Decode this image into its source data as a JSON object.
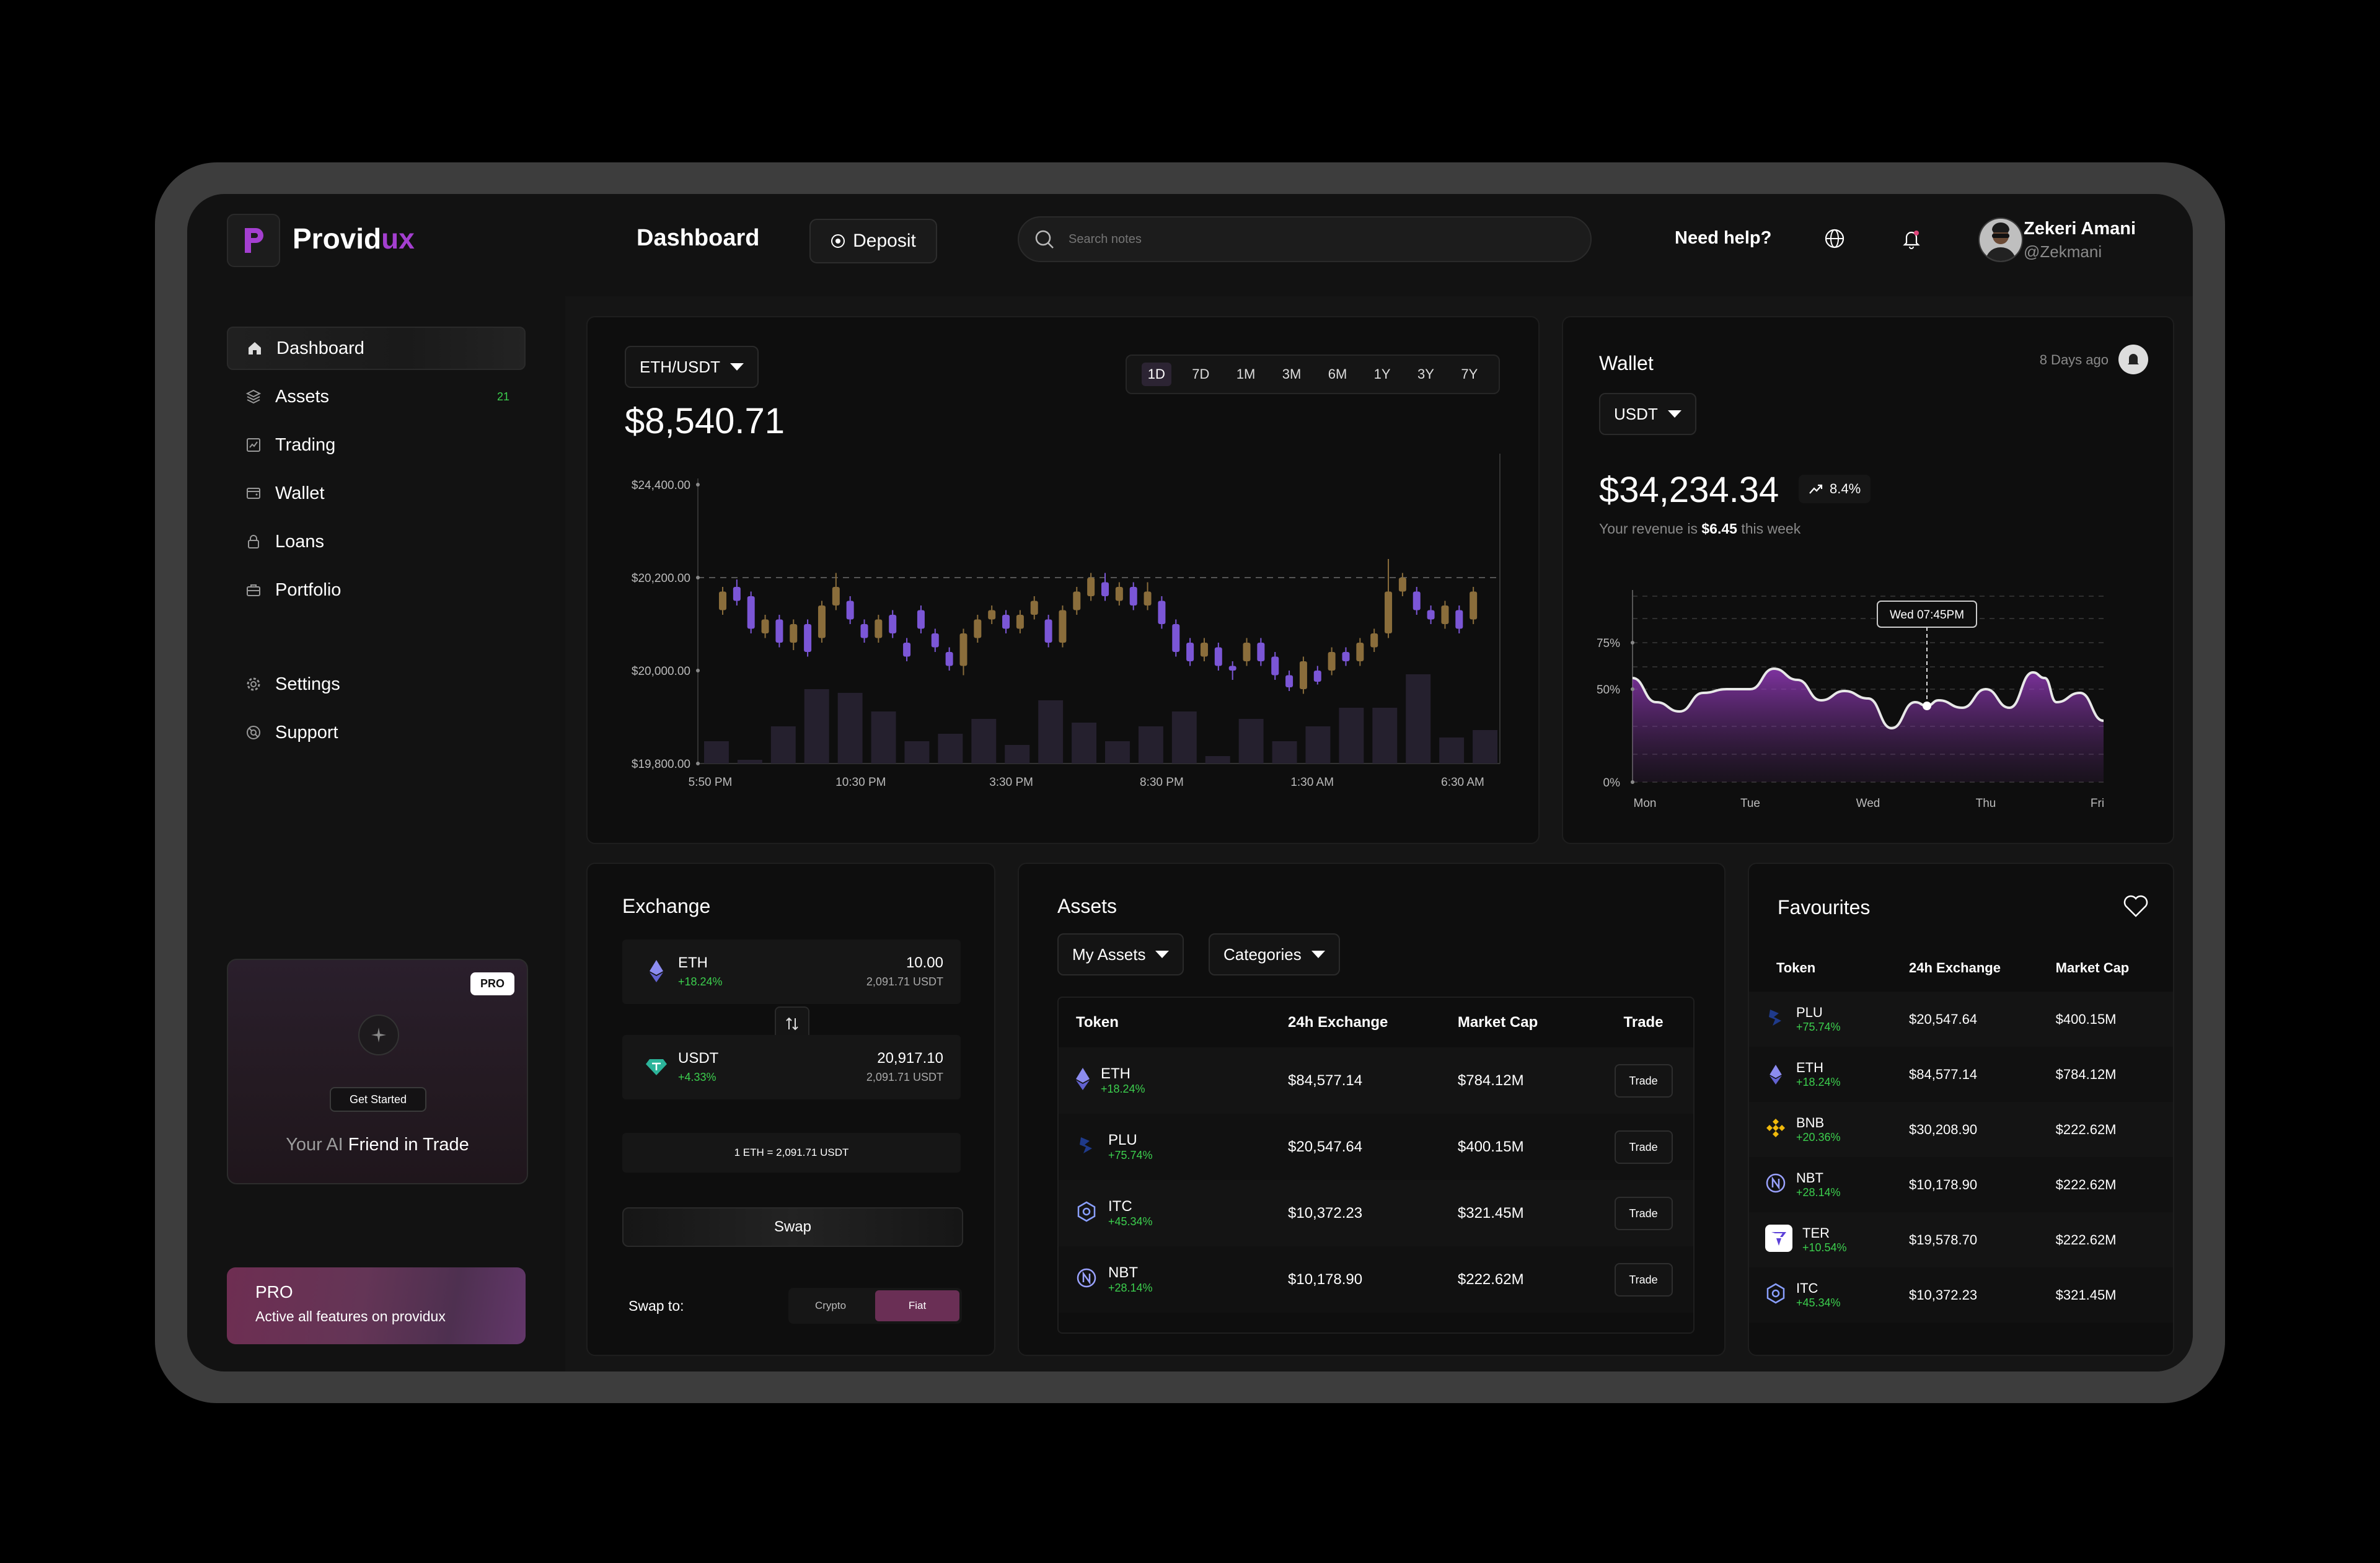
{
  "brand": {
    "name_main": "Provid",
    "name_accent": "ux"
  },
  "header": {
    "title": "Dashboard",
    "deposit_label": "Deposit",
    "search_placeholder": "Search notes",
    "help_label": "Need help?",
    "user_name": "Zekeri Amani",
    "user_handle": "@Zekmani"
  },
  "sidebar": {
    "items": [
      {
        "label": "Dashboard",
        "icon": "home-icon",
        "active": true
      },
      {
        "label": "Assets",
        "icon": "layers-icon",
        "badge": "21"
      },
      {
        "label": "Trading",
        "icon": "trading-chart-icon"
      },
      {
        "label": "Wallet",
        "icon": "wallet-icon"
      },
      {
        "label": "Loans",
        "icon": "lock-icon"
      },
      {
        "label": "Portfolio",
        "icon": "briefcase-icon"
      }
    ],
    "bottom_items": [
      {
        "label": "Settings",
        "icon": "gear-icon"
      },
      {
        "label": "Support",
        "icon": "support-icon"
      }
    ],
    "promo": {
      "tag": "PRO",
      "cta": "Get Started",
      "text_grey": "Your AI ",
      "text_white": "Friend in Trade"
    },
    "pro_bar": {
      "title": "PRO",
      "subtitle": "Active all features on providux"
    }
  },
  "market": {
    "pair": "ETH/USDT",
    "price": "$8,540.71",
    "timeframes": [
      "1D",
      "7D",
      "1M",
      "3M",
      "6M",
      "1Y",
      "3Y",
      "7Y"
    ],
    "active_timeframe": "1D"
  },
  "wallet": {
    "title": "Wallet",
    "updated": "8 Days ago",
    "currency": "USDT",
    "balance": "$34,234.34",
    "change": "8.4%",
    "revenue_prefix": "Your revenue is ",
    "revenue_value": "$6.45",
    "revenue_suffix": " this week",
    "tooltip": "Wed 07:45PM"
  },
  "exchange": {
    "title": "Exchange",
    "from": {
      "symbol": "ETH",
      "change": "+18.24%",
      "amount": "10.00",
      "sub": "2,091.71 USDT"
    },
    "to": {
      "symbol": "USDT",
      "change": "+4.33%",
      "amount": "20,917.10",
      "sub": "2,091.71 USDT"
    },
    "rate": "1 ETH = 2,091.71 USDT",
    "swap_label": "Swap",
    "swap_to_label": "Swap to:",
    "options": [
      "Crypto",
      "Fiat"
    ],
    "active_option": "Fiat"
  },
  "assets": {
    "title": "Assets",
    "filter1": "My Assets",
    "filter2": "Categories",
    "columns": [
      "Token",
      "24h Exchange",
      "Market Cap",
      "Trade"
    ],
    "trade_label": "Trade",
    "rows": [
      {
        "symbol": "ETH",
        "change": "+18.24%",
        "exchange": "$84,577.14",
        "cap": "$784.12M",
        "icon": "eth-icon"
      },
      {
        "symbol": "PLU",
        "change": "+75.74%",
        "exchange": "$20,547.64",
        "cap": "$400.15M",
        "icon": "plu-icon"
      },
      {
        "symbol": "ITC",
        "change": "+45.34%",
        "exchange": "$10,372.23",
        "cap": "$321.45M",
        "icon": "itc-icon"
      },
      {
        "symbol": "NBT",
        "change": "+28.14%",
        "exchange": "$10,178.90",
        "cap": "$222.62M",
        "icon": "nbt-icon"
      }
    ]
  },
  "favourites": {
    "title": "Favourites",
    "columns": [
      "Token",
      "24h Exchange",
      "Market Cap"
    ],
    "rows": [
      {
        "symbol": "PLU",
        "change": "+75.74%",
        "exchange": "$20,547.64",
        "cap": "$400.15M",
        "icon": "plu-icon"
      },
      {
        "symbol": "ETH",
        "change": "+18.24%",
        "exchange": "$84,577.14",
        "cap": "$784.12M",
        "icon": "eth-icon"
      },
      {
        "symbol": "BNB",
        "change": "+20.36%",
        "exchange": "$30,208.90",
        "cap": "$222.62M",
        "icon": "bnb-icon"
      },
      {
        "symbol": "NBT",
        "change": "+28.14%",
        "exchange": "$10,178.90",
        "cap": "$222.62M",
        "icon": "nbt-icon"
      },
      {
        "symbol": "TER",
        "change": "+10.54%",
        "exchange": "$19,578.70",
        "cap": "$222.62M",
        "icon": "ter-icon"
      },
      {
        "symbol": "ITC",
        "change": "+45.34%",
        "exchange": "$10,372.23",
        "cap": "$321.45M",
        "icon": "itc-icon"
      }
    ]
  },
  "colors": {
    "accent": "#a43fd0",
    "bull": "#8a6d3b",
    "bear": "#7b56d6",
    "positive": "#3ccf4e"
  },
  "chart_data": [
    {
      "type": "candlestick",
      "title": "ETH/USDT",
      "y_ticks": [
        "$24,400.00",
        "$20,200.00",
        "$20,000.00",
        "$19,800.00"
      ],
      "x_ticks": [
        "5:50 PM",
        "10:30 PM",
        "3:30 PM",
        "8:30 PM",
        "1:30 AM",
        "6:30 AM"
      ],
      "y_scale": "index",
      "ylim": [
        0,
        3
      ],
      "candles": [
        {
          "o": 1.65,
          "c": 1.85,
          "h": 1.9,
          "l": 1.6
        },
        {
          "o": 1.9,
          "c": 1.75,
          "h": 1.98,
          "l": 1.7
        },
        {
          "o": 1.8,
          "c": 1.45,
          "h": 1.85,
          "l": 1.4
        },
        {
          "o": 1.4,
          "c": 1.55,
          "h": 1.6,
          "l": 1.35
        },
        {
          "o": 1.55,
          "c": 1.3,
          "h": 1.6,
          "l": 1.25
        },
        {
          "o": 1.3,
          "c": 1.5,
          "h": 1.55,
          "l": 1.22
        },
        {
          "o": 1.5,
          "c": 1.2,
          "h": 1.55,
          "l": 1.15
        },
        {
          "o": 1.35,
          "c": 1.7,
          "h": 1.75,
          "l": 1.3
        },
        {
          "o": 1.7,
          "c": 1.9,
          "h": 2.05,
          "l": 1.65
        },
        {
          "o": 1.75,
          "c": 1.55,
          "h": 1.8,
          "l": 1.5
        },
        {
          "o": 1.5,
          "c": 1.35,
          "h": 1.55,
          "l": 1.3
        },
        {
          "o": 1.35,
          "c": 1.55,
          "h": 1.6,
          "l": 1.3
        },
        {
          "o": 1.6,
          "c": 1.4,
          "h": 1.65,
          "l": 1.35
        },
        {
          "o": 1.3,
          "c": 1.15,
          "h": 1.35,
          "l": 1.1
        },
        {
          "o": 1.65,
          "c": 1.45,
          "h": 1.7,
          "l": 1.4
        },
        {
          "o": 1.4,
          "c": 1.25,
          "h": 1.45,
          "l": 1.2
        },
        {
          "o": 1.2,
          "c": 1.05,
          "h": 1.25,
          "l": 1.0
        },
        {
          "o": 1.05,
          "c": 1.4,
          "h": 1.45,
          "l": 0.95
        },
        {
          "o": 1.35,
          "c": 1.55,
          "h": 1.6,
          "l": 1.3
        },
        {
          "o": 1.55,
          "c": 1.65,
          "h": 1.7,
          "l": 1.5
        },
        {
          "o": 1.6,
          "c": 1.45,
          "h": 1.65,
          "l": 1.4
        },
        {
          "o": 1.45,
          "c": 1.6,
          "h": 1.65,
          "l": 1.4
        },
        {
          "o": 1.6,
          "c": 1.75,
          "h": 1.8,
          "l": 1.55
        },
        {
          "o": 1.55,
          "c": 1.3,
          "h": 1.6,
          "l": 1.25
        },
        {
          "o": 1.3,
          "c": 1.65,
          "h": 1.7,
          "l": 1.25
        },
        {
          "o": 1.65,
          "c": 1.85,
          "h": 1.9,
          "l": 1.6
        },
        {
          "o": 1.8,
          "c": 2.0,
          "h": 2.05,
          "l": 1.75
        },
        {
          "o": 1.95,
          "c": 1.8,
          "h": 2.05,
          "l": 1.75
        },
        {
          "o": 1.75,
          "c": 1.9,
          "h": 1.95,
          "l": 1.7
        },
        {
          "o": 1.9,
          "c": 1.7,
          "h": 1.95,
          "l": 1.65
        },
        {
          "o": 1.7,
          "c": 1.85,
          "h": 1.95,
          "l": 1.65
        },
        {
          "o": 1.75,
          "c": 1.5,
          "h": 1.8,
          "l": 1.45
        },
        {
          "o": 1.5,
          "c": 1.2,
          "h": 1.55,
          "l": 1.15
        },
        {
          "o": 1.3,
          "c": 1.1,
          "h": 1.35,
          "l": 1.05
        },
        {
          "o": 1.15,
          "c": 1.3,
          "h": 1.35,
          "l": 1.1
        },
        {
          "o": 1.25,
          "c": 1.05,
          "h": 1.3,
          "l": 1.0
        },
        {
          "o": 1.05,
          "c": 1.0,
          "h": 1.1,
          "l": 0.9
        },
        {
          "o": 1.1,
          "c": 1.3,
          "h": 1.35,
          "l": 1.05
        },
        {
          "o": 1.3,
          "c": 1.1,
          "h": 1.35,
          "l": 1.05
        },
        {
          "o": 1.15,
          "c": 0.95,
          "h": 1.2,
          "l": 0.9
        },
        {
          "o": 0.95,
          "c": 0.82,
          "h": 1.0,
          "l": 0.78
        },
        {
          "o": 0.8,
          "c": 1.1,
          "h": 1.15,
          "l": 0.75
        },
        {
          "o": 1.0,
          "c": 0.88,
          "h": 1.05,
          "l": 0.85
        },
        {
          "o": 1.0,
          "c": 1.2,
          "h": 1.25,
          "l": 0.95
        },
        {
          "o": 1.2,
          "c": 1.1,
          "h": 1.25,
          "l": 1.05
        },
        {
          "o": 1.1,
          "c": 1.3,
          "h": 1.35,
          "l": 1.05
        },
        {
          "o": 1.25,
          "c": 1.4,
          "h": 1.45,
          "l": 1.2
        },
        {
          "o": 1.4,
          "c": 1.85,
          "h": 2.2,
          "l": 1.35
        },
        {
          "o": 1.85,
          "c": 2.0,
          "h": 2.05,
          "l": 1.8
        },
        {
          "o": 1.85,
          "c": 1.65,
          "h": 1.9,
          "l": 1.6
        },
        {
          "o": 1.65,
          "c": 1.55,
          "h": 1.7,
          "l": 1.5
        },
        {
          "o": 1.5,
          "c": 1.7,
          "h": 1.75,
          "l": 1.45
        },
        {
          "o": 1.65,
          "c": 1.45,
          "h": 1.7,
          "l": 1.4
        },
        {
          "o": 1.55,
          "c": 1.85,
          "h": 1.9,
          "l": 1.5
        }
      ],
      "volume": [
        0.3,
        0.05,
        0.5,
        1.0,
        0.95,
        0.7,
        0.3,
        0.4,
        0.6,
        0.25,
        0.85,
        0.55,
        0.3,
        0.5,
        0.7,
        0.1,
        0.6,
        0.3,
        0.5,
        0.75,
        0.75,
        1.2,
        0.35,
        0.45
      ]
    },
    {
      "type": "area",
      "title": "Wallet",
      "y_ticks": [
        "75%",
        "50%",
        "0%"
      ],
      "x_ticks": [
        "Mon",
        "Tue",
        "Wed",
        "Thu",
        "Fri"
      ],
      "ylim": [
        0,
        100
      ],
      "x": [
        0,
        0.05,
        0.1,
        0.15,
        0.2,
        0.25,
        0.3,
        0.35,
        0.4,
        0.45,
        0.5,
        0.55,
        0.6,
        0.625,
        0.65,
        0.7,
        0.75,
        0.8,
        0.85,
        0.875,
        0.9,
        0.95,
        1.0
      ],
      "values": [
        56,
        43,
        38,
        48,
        50,
        50,
        61,
        55,
        44,
        49,
        45,
        29,
        43,
        41,
        44,
        40,
        50,
        40,
        59,
        56,
        43,
        48,
        33
      ],
      "marker_x": 0.625
    }
  ]
}
